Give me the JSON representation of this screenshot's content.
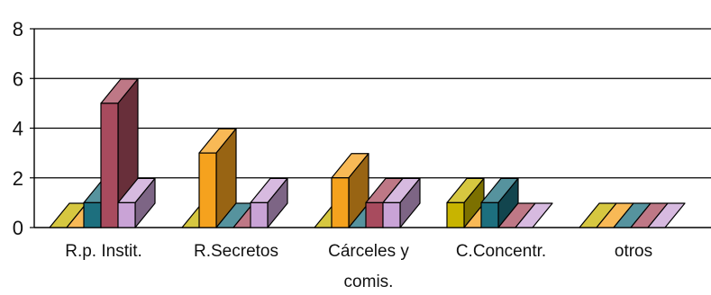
{
  "chart_data": {
    "type": "bar",
    "style": "3d",
    "categories": [
      "R.p. Instit.",
      "R.Secretos",
      "Cárceles y comis.",
      "C.Concentr.",
      "otros"
    ],
    "category_label_lines": [
      [
        "R.p. Instit."
      ],
      [
        "R.Secretos"
      ],
      [
        "Cárceles y",
        "comis."
      ],
      [
        "C.Concentr."
      ],
      [
        "otros"
      ]
    ],
    "series": [
      {
        "color": "#C8B400",
        "values": [
          0,
          0,
          0,
          1,
          0
        ]
      },
      {
        "color": "#F5A21E",
        "values": [
          0,
          3,
          2,
          0,
          0
        ]
      },
      {
        "color": "#1D6F7E",
        "values": [
          1,
          0,
          0,
          1,
          0
        ]
      },
      {
        "color": "#A84B5E",
        "values": [
          5,
          0,
          1,
          0,
          0
        ]
      },
      {
        "color": "#C9A3D6",
        "values": [
          1,
          1,
          1,
          0,
          0
        ]
      }
    ],
    "ylim": [
      0,
      8
    ],
    "yticks": [
      0,
      2,
      4,
      6,
      8
    ],
    "ytick_labels": [
      "0",
      "2",
      "4",
      "6",
      "8"
    ],
    "grid": true,
    "title": "",
    "xlabel": "",
    "ylabel": ""
  }
}
